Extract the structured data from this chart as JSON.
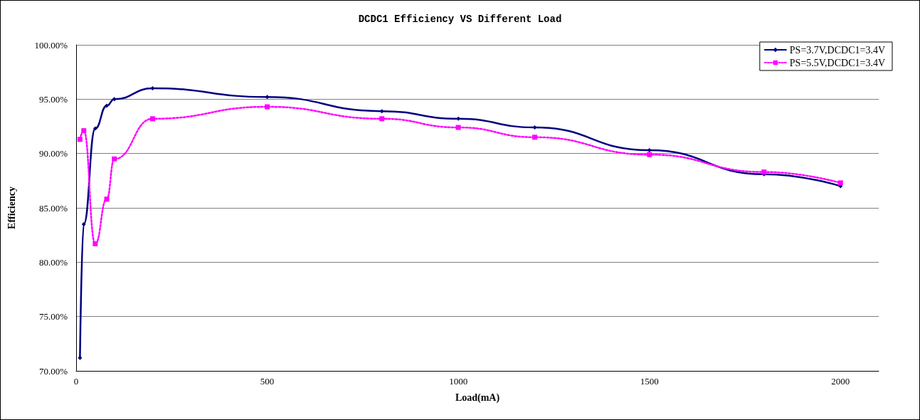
{
  "chart_data": {
    "type": "line",
    "title": "DCDC1 Efficiency VS Different Load",
    "xlabel": "Load(mA)",
    "ylabel": "Efficiency",
    "xlim": [
      0,
      2100
    ],
    "xticks": [
      0,
      500,
      1000,
      1500,
      2000
    ],
    "ylim": [
      70,
      100
    ],
    "yticks": [
      {
        "value": 70,
        "label": "70.00%"
      },
      {
        "value": 75,
        "label": "75.00%"
      },
      {
        "value": 80,
        "label": "80.00%"
      },
      {
        "value": 85,
        "label": "85.00%"
      },
      {
        "value": 90,
        "label": "90.00%"
      },
      {
        "value": 95,
        "label": "95.00%"
      },
      {
        "value": 100,
        "label": "100.00%"
      }
    ],
    "grid": "y",
    "legend": "top right",
    "series": [
      {
        "name": "PS=3.7V,DCDC1=3.4V",
        "color": "#000080",
        "marker": "diamond",
        "line_style": "solid",
        "x": [
          10,
          20,
          50,
          80,
          100,
          200,
          500,
          800,
          1000,
          1200,
          1500,
          1800,
          2000
        ],
        "values": [
          71.2,
          83.5,
          92.3,
          94.4,
          95.0,
          96.0,
          95.2,
          93.9,
          93.2,
          92.4,
          90.3,
          88.1,
          87.0
        ]
      },
      {
        "name": "PS=5.5V,DCDC1=3.4V",
        "color": "#ff00ff",
        "marker": "square",
        "line_style": "dotted",
        "x": [
          10,
          20,
          50,
          80,
          100,
          200,
          500,
          800,
          1000,
          1200,
          1500,
          1800,
          2000
        ],
        "values": [
          91.3,
          92.1,
          81.7,
          85.8,
          89.5,
          93.2,
          94.3,
          93.2,
          92.4,
          91.5,
          89.9,
          88.3,
          87.3
        ]
      }
    ]
  }
}
